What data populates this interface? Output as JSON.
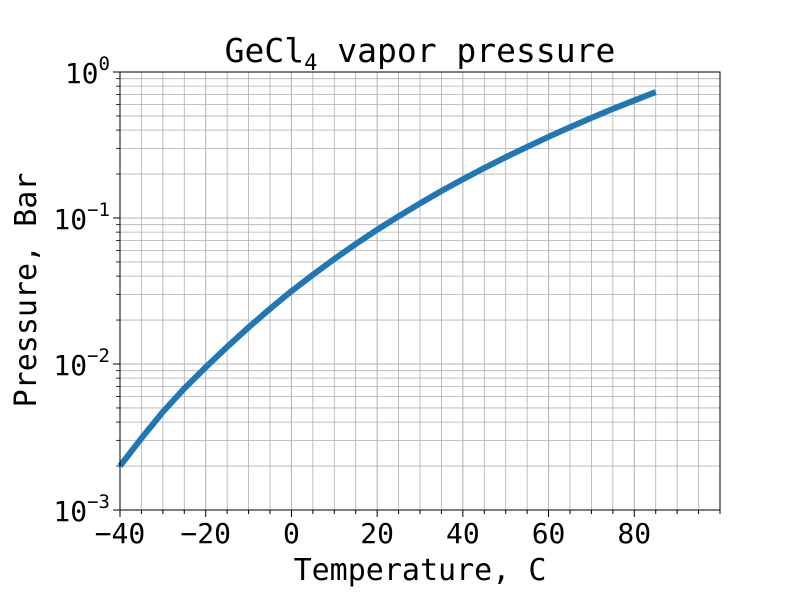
{
  "chart_data": {
    "type": "line",
    "title_base": "GeCl",
    "title_sub": "4",
    "title_rest": " vapor pressure",
    "xlabel": "Temperature, C",
    "ylabel": "Pressure, Bar",
    "xlim": [
      -40,
      100
    ],
    "ylim": [
      0.001,
      1
    ],
    "yscale": "log",
    "grid": "major and minor",
    "x_ticks": [
      -40,
      -20,
      0,
      20,
      40,
      60,
      80
    ],
    "x_tick_labels": [
      "−40",
      "−20",
      "0",
      "20",
      "40",
      "60",
      "80"
    ],
    "y_ticks": [
      0.001,
      0.01,
      0.1,
      1
    ],
    "y_tick_labels": [
      {
        "base": "10",
        "exp": "−3"
      },
      {
        "base": "10",
        "exp": "−2"
      },
      {
        "base": "10",
        "exp": "−1"
      },
      {
        "base": "10",
        "exp": "0"
      }
    ],
    "series": [
      {
        "color": "#1f77b4",
        "x": [
          -40,
          -35,
          -30,
          -25,
          -20,
          -15,
          -10,
          -5,
          0,
          5,
          10,
          15,
          20,
          25,
          30,
          35,
          40,
          45,
          50,
          55,
          60,
          65,
          70,
          75,
          80,
          85
        ],
        "y": [
          0.002,
          0.0031,
          0.0047,
          0.0068,
          0.0095,
          0.0131,
          0.0178,
          0.0239,
          0.0315,
          0.0409,
          0.0524,
          0.0663,
          0.083,
          0.1027,
          0.1259,
          0.153,
          0.184,
          0.22,
          0.261,
          0.307,
          0.36,
          0.419,
          0.485,
          0.559,
          0.639,
          0.728
        ]
      }
    ]
  }
}
